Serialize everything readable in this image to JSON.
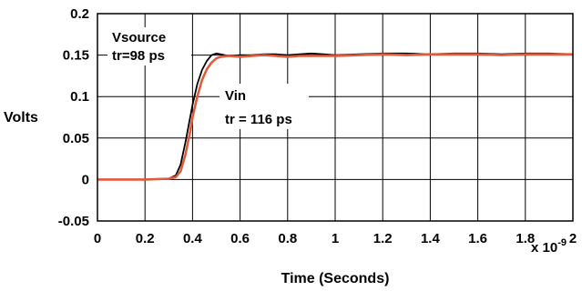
{
  "chart_data": {
    "type": "line",
    "xlabel": "Time (Seconds)",
    "xscale_label": "x 10",
    "xscale_exp": "-9",
    "ylabel": "Volts",
    "xlim": [
      0,
      2
    ],
    "ylim": [
      -0.05,
      0.2
    ],
    "grid": true,
    "xticks": [
      0,
      0.2,
      0.4,
      0.6,
      0.8,
      1,
      1.2,
      1.4,
      1.6,
      1.8,
      2
    ],
    "xtick_labels": [
      "0",
      "0.2",
      "0.4",
      "0.6",
      "0.8",
      "1",
      "1.2",
      "1.4",
      "1.6",
      "1.8",
      "2"
    ],
    "yticks": [
      -0.05,
      0,
      0.05,
      0.1,
      0.15,
      0.2
    ],
    "ytick_labels": [
      "-0.05",
      "0",
      "0.05",
      "0.1",
      "0.15",
      "0.2"
    ],
    "series": [
      {
        "color": "#000000",
        "x": [
          0,
          0.1,
          0.2,
          0.3,
          0.33,
          0.35,
          0.37,
          0.39,
          0.4,
          0.42,
          0.44,
          0.46,
          0.48,
          0.5,
          0.52,
          0.55,
          0.6,
          0.65,
          0.7,
          0.75,
          0.8,
          0.85,
          0.9,
          0.95,
          1.0,
          1.1,
          1.2,
          1.3,
          1.4,
          1.5,
          1.6,
          1.7,
          1.8,
          1.9,
          2.0
        ],
        "y": [
          0,
          0,
          0,
          0.001,
          0.005,
          0.018,
          0.045,
          0.075,
          0.09,
          0.115,
          0.132,
          0.143,
          0.15,
          0.152,
          0.151,
          0.149,
          0.15,
          0.15,
          0.151,
          0.151,
          0.15,
          0.151,
          0.152,
          0.151,
          0.15,
          0.151,
          0.152,
          0.152,
          0.151,
          0.152,
          0.152,
          0.151,
          0.152,
          0.152,
          0.151
        ]
      },
      {
        "color": "#e05a3c",
        "x": [
          0,
          0.1,
          0.2,
          0.3,
          0.33,
          0.35,
          0.37,
          0.39,
          0.4,
          0.42,
          0.44,
          0.46,
          0.48,
          0.5,
          0.52,
          0.55,
          0.6,
          0.65,
          0.7,
          0.75,
          0.8,
          0.85,
          0.9,
          0.95,
          1.0,
          1.1,
          1.2,
          1.3,
          1.4,
          1.5,
          1.6,
          1.7,
          1.8,
          1.9,
          2.0
        ],
        "y": [
          0,
          0,
          0,
          0.001,
          0.003,
          0.01,
          0.03,
          0.058,
          0.075,
          0.1,
          0.12,
          0.133,
          0.141,
          0.146,
          0.148,
          0.149,
          0.148,
          0.149,
          0.15,
          0.149,
          0.148,
          0.149,
          0.149,
          0.149,
          0.149,
          0.15,
          0.151,
          0.15,
          0.151,
          0.151,
          0.151,
          0.15,
          0.151,
          0.151,
          0.151
        ]
      }
    ],
    "annotations": [
      {
        "id": "vsource",
        "lines": [
          "Vsource",
          "tr=98 ps"
        ]
      },
      {
        "id": "vin",
        "lines": [
          "Vin",
          "tr = 116 ps"
        ]
      }
    ]
  }
}
